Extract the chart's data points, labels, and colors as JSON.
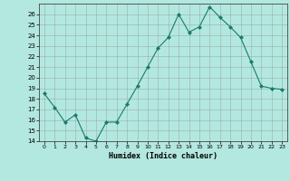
{
  "x": [
    0,
    1,
    2,
    3,
    4,
    5,
    6,
    7,
    8,
    9,
    10,
    11,
    12,
    13,
    14,
    15,
    16,
    17,
    18,
    19,
    20,
    21,
    22,
    23
  ],
  "y": [
    18.5,
    17.2,
    15.8,
    16.5,
    14.3,
    14.0,
    15.8,
    15.8,
    17.5,
    19.2,
    21.0,
    22.8,
    23.8,
    26.0,
    24.3,
    24.8,
    26.7,
    25.7,
    24.8,
    23.8,
    21.5,
    19.2,
    19.0,
    18.9
  ],
  "line_color": "#1a7a6e",
  "marker": "D",
  "marker_size": 2.0,
  "bg_color": "#b3e8e0",
  "grid_color": "#888888",
  "xlabel": "Humidex (Indice chaleur)",
  "ylim": [
    14,
    27
  ],
  "xlim": [
    -0.5,
    23.5
  ],
  "yticks": [
    14,
    15,
    16,
    17,
    18,
    19,
    20,
    21,
    22,
    23,
    24,
    25,
    26
  ],
  "xticks": [
    0,
    1,
    2,
    3,
    4,
    5,
    6,
    7,
    8,
    9,
    10,
    11,
    12,
    13,
    14,
    15,
    16,
    17,
    18,
    19,
    20,
    21,
    22,
    23
  ]
}
